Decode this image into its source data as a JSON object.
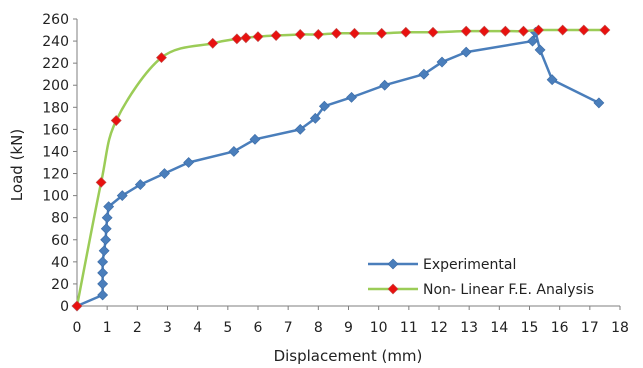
{
  "chart_data": {
    "type": "line",
    "xlabel": "Displacement (mm)",
    "ylabel": "Load (kN)",
    "xlim": [
      0,
      18
    ],
    "ylim": [
      0,
      260
    ],
    "x_ticks": [
      "0",
      "1",
      "2",
      "3",
      "4",
      "5",
      "6",
      "7",
      "8",
      "9",
      "10",
      "11",
      "12",
      "13",
      "14",
      "15",
      "16",
      "17",
      "18"
    ],
    "y_ticks": [
      "0",
      "20",
      "40",
      "60",
      "80",
      "100",
      "120",
      "140",
      "160",
      "180",
      "200",
      "220",
      "240",
      "260"
    ],
    "grid": false,
    "legend_position": "bottom-right",
    "series": [
      {
        "name": "Experimental",
        "color": "#4a7ebb",
        "marker": "diamond",
        "smooth": false,
        "points": [
          [
            0,
            0
          ],
          [
            0.85,
            10
          ],
          [
            0.85,
            20
          ],
          [
            0.85,
            30
          ],
          [
            0.85,
            40
          ],
          [
            0.9,
            50
          ],
          [
            0.95,
            60
          ],
          [
            0.97,
            70
          ],
          [
            1.0,
            80
          ],
          [
            1.05,
            90
          ],
          [
            1.5,
            100
          ],
          [
            2.1,
            110
          ],
          [
            2.9,
            120
          ],
          [
            3.7,
            130
          ],
          [
            5.2,
            140
          ],
          [
            5.9,
            151
          ],
          [
            7.4,
            160
          ],
          [
            7.9,
            170
          ],
          [
            8.2,
            181
          ],
          [
            9.1,
            189
          ],
          [
            10.2,
            200
          ],
          [
            11.5,
            210
          ],
          [
            12.1,
            221
          ],
          [
            12.9,
            230
          ],
          [
            15.1,
            240
          ],
          [
            15.2,
            248
          ],
          [
            15.35,
            232
          ],
          [
            15.75,
            205
          ],
          [
            17.3,
            184
          ]
        ]
      },
      {
        "name": "Non- Linear F.E. Analysis",
        "line_color": "#9bcc57",
        "marker_color": "#e8110f",
        "marker": "diamond",
        "smooth": true,
        "points": [
          [
            0,
            0
          ],
          [
            0.8,
            112
          ],
          [
            1.3,
            168
          ],
          [
            2.8,
            225
          ],
          [
            4.5,
            238
          ],
          [
            5.3,
            242
          ],
          [
            5.6,
            243
          ],
          [
            6.0,
            244
          ],
          [
            6.6,
            245
          ],
          [
            7.4,
            246
          ],
          [
            8.0,
            246
          ],
          [
            8.6,
            247
          ],
          [
            9.2,
            247
          ],
          [
            10.1,
            247
          ],
          [
            10.9,
            248
          ],
          [
            11.8,
            248
          ],
          [
            12.9,
            249
          ],
          [
            13.5,
            249
          ],
          [
            14.2,
            249
          ],
          [
            14.8,
            249
          ],
          [
            15.3,
            250
          ],
          [
            16.1,
            250
          ],
          [
            16.8,
            250
          ],
          [
            17.5,
            250
          ]
        ]
      }
    ]
  }
}
